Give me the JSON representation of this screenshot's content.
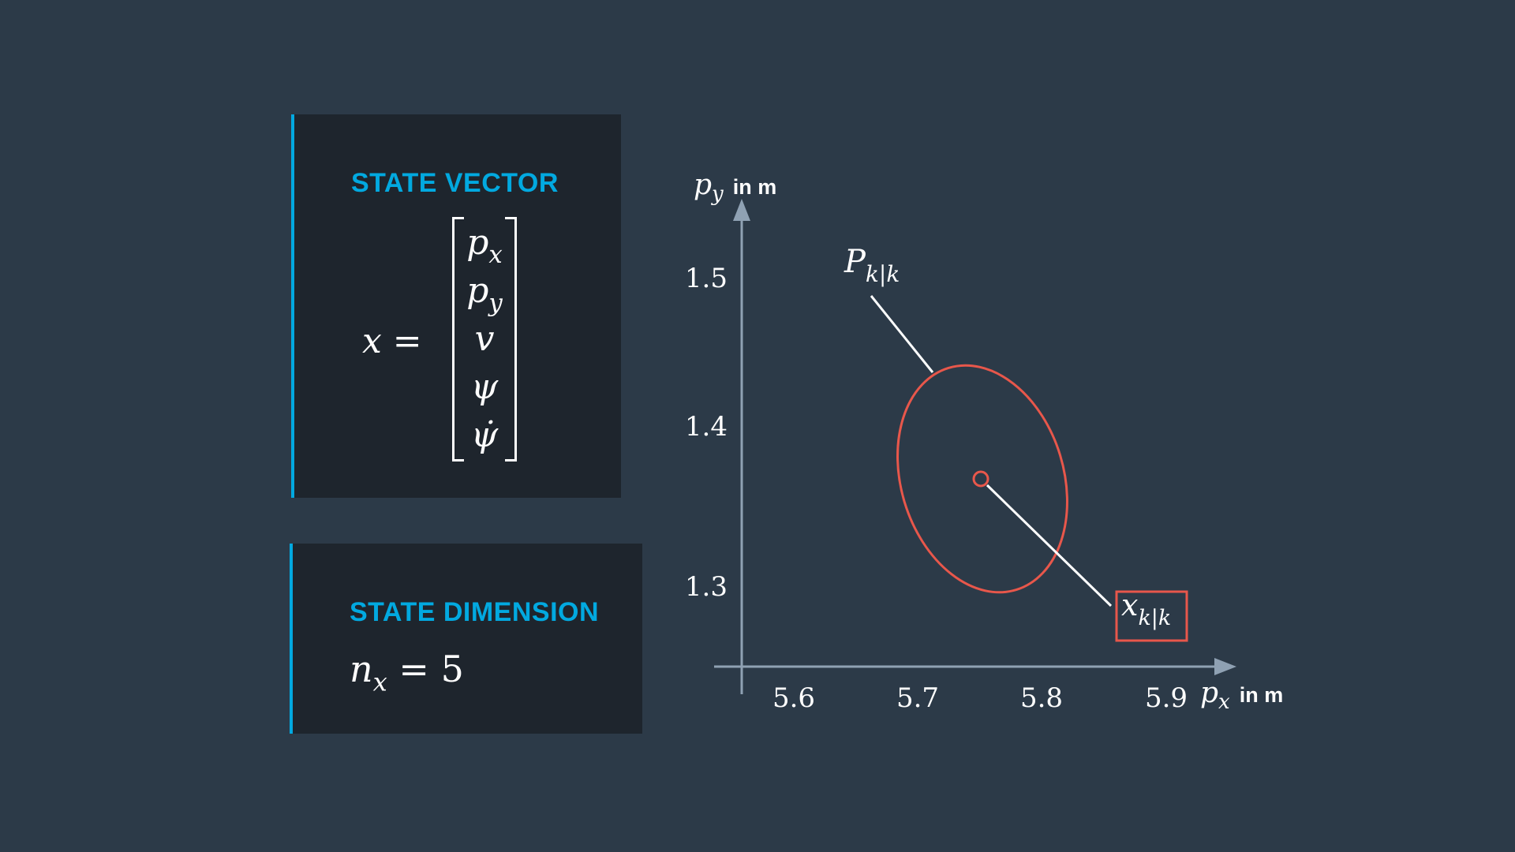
{
  "state_vector": {
    "title": "STATE VECTOR",
    "lhs": "x =",
    "entries": [
      "p",
      "p",
      "v",
      "ψ",
      "ψ̇"
    ],
    "entry_subs": [
      "x",
      "y",
      "",
      "",
      ""
    ]
  },
  "state_dimension": {
    "title": "STATE DIMENSION",
    "var": "n",
    "sub": "x",
    "rhs": "= 5"
  },
  "colors": {
    "accent": "#02a9e0",
    "ellipse": "#e8574b",
    "axis": "#8fa1b3",
    "background": "#2c3a48",
    "card": "#1e252d"
  },
  "chart_data": {
    "type": "scatter",
    "xlabel_symbol": "p",
    "xlabel_sub": "x",
    "xlabel_unit": "in m",
    "ylabel_symbol": "p",
    "ylabel_sub": "y",
    "ylabel_unit": "in m",
    "x_ticks": [
      "5.6",
      "5.7",
      "5.8",
      "5.9"
    ],
    "y_ticks": [
      "1.5",
      "1.4",
      "1.3"
    ],
    "covariance_label": "P",
    "covariance_label_sub": "k|k",
    "estimate_label": "x",
    "estimate_label_sub": "k|k",
    "estimate": {
      "x": 5.75,
      "y": 1.36
    }
  }
}
